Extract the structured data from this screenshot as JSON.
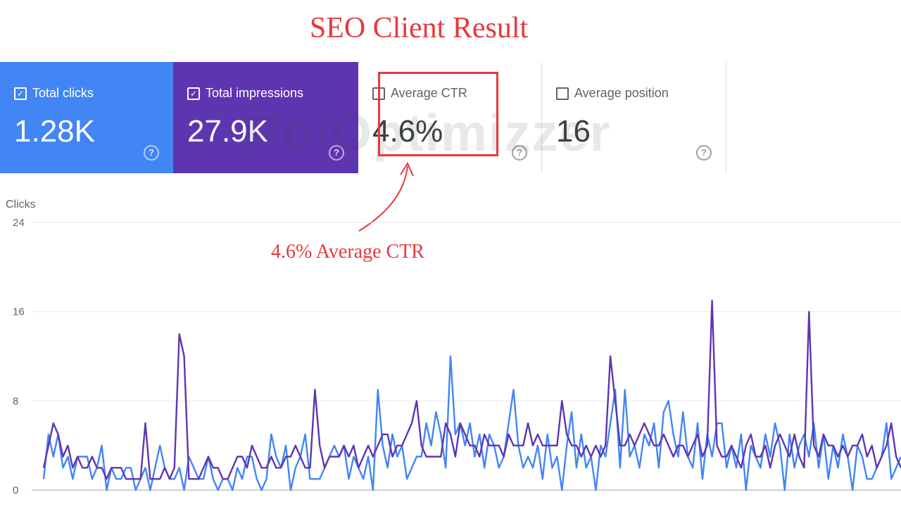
{
  "title": "SEO Client Result",
  "watermark": "RoiOptimizzer",
  "cards": {
    "clicks": {
      "label": "Total clicks",
      "value": "1.28K",
      "checked": true,
      "help_icon": "help-circle-icon"
    },
    "impressions": {
      "label": "Total impressions",
      "value": "27.9K",
      "checked": true,
      "help_icon": "help-circle-icon"
    },
    "ctr": {
      "label": "Average CTR",
      "value": "4.6%",
      "checked": false,
      "help_icon": "help-circle-icon"
    },
    "position": {
      "label": "Average position",
      "value": "16",
      "checked": false,
      "help_icon": "help-circle-icon"
    }
  },
  "annotation": "4.6% Average CTR",
  "colors": {
    "clicks": "#4285f4",
    "impressions": "#5e35b1",
    "annotation": "#e8383d"
  },
  "chart_data": {
    "type": "line",
    "ylabel": "Clicks",
    "yticks": [
      0,
      8,
      16,
      24
    ],
    "ylim": [
      0,
      24
    ],
    "grid": true,
    "series": [
      {
        "name": "Total clicks",
        "values": [
          1,
          5,
          3,
          5,
          2,
          3,
          1,
          3,
          3,
          3,
          1,
          2,
          4,
          0,
          2,
          1,
          1,
          2,
          2,
          0,
          1,
          2,
          0,
          2,
          4,
          2,
          1,
          1,
          2,
          0,
          3,
          2,
          1,
          1,
          3,
          1,
          0,
          1,
          1,
          0,
          2,
          1,
          3,
          3,
          1,
          0,
          1,
          5,
          3,
          2,
          4,
          0,
          2,
          3,
          5,
          1,
          1,
          1,
          2,
          3,
          4,
          3,
          4,
          1,
          3,
          2,
          1,
          3,
          0,
          9,
          4,
          2,
          5,
          3,
          4,
          1,
          2,
          3,
          3,
          6,
          4,
          7,
          5,
          2,
          12,
          5,
          6,
          4,
          6,
          3,
          5,
          2,
          5,
          4,
          2,
          3,
          6,
          9,
          4,
          2,
          3,
          2,
          4,
          1,
          5,
          2,
          3,
          0,
          4,
          7,
          2,
          5,
          2,
          3,
          0,
          4,
          3,
          6,
          9,
          2,
          9,
          3,
          4,
          2,
          5,
          4,
          6,
          2,
          7,
          8,
          5,
          3,
          7,
          3,
          2,
          6,
          1,
          5,
          3,
          6,
          6,
          2,
          4,
          2,
          5,
          0,
          4,
          3,
          2,
          5,
          3,
          6,
          4,
          0,
          5,
          2,
          4,
          5,
          3,
          6,
          2,
          5,
          1,
          4,
          2,
          5,
          3,
          0,
          4,
          3,
          1,
          1,
          2,
          3,
          6,
          1,
          2,
          3
        ]
      },
      {
        "name": "Total impressions",
        "values": [
          2,
          4,
          6,
          5,
          3,
          4,
          2,
          3,
          2,
          2,
          3,
          2,
          2,
          1,
          2,
          2,
          2,
          1,
          1,
          1,
          1,
          6,
          1,
          1,
          1,
          2,
          1,
          2,
          14,
          12,
          1,
          1,
          1,
          2,
          3,
          2,
          2,
          1,
          1,
          2,
          3,
          3,
          2,
          4,
          3,
          2,
          2,
          3,
          2,
          2,
          3,
          3,
          4,
          3,
          2,
          2,
          9,
          4,
          2,
          3,
          3,
          3,
          4,
          3,
          4,
          2,
          3,
          4,
          3,
          4,
          5,
          5,
          3,
          4,
          4,
          5,
          6,
          8,
          4,
          3,
          3,
          3,
          3,
          6,
          5,
          3,
          6,
          5,
          4,
          4,
          3,
          5,
          4,
          4,
          4,
          3,
          5,
          4,
          4,
          4,
          6,
          4,
          5,
          4,
          4,
          4,
          4,
          8,
          5,
          4,
          4,
          3,
          4,
          3,
          4,
          3,
          4,
          12,
          8,
          4,
          4,
          5,
          4,
          5,
          6,
          5,
          4,
          4,
          5,
          4,
          3,
          4,
          4,
          3,
          4,
          5,
          3,
          4,
          17,
          4,
          3,
          3,
          4,
          3,
          2,
          4,
          5,
          3,
          3,
          4,
          2,
          4,
          5,
          4,
          3,
          5,
          3,
          2,
          16,
          4,
          3,
          5,
          4,
          4,
          3,
          4,
          3,
          4,
          4,
          5,
          3,
          4,
          2,
          3,
          4,
          6,
          3,
          2
        ]
      }
    ]
  }
}
